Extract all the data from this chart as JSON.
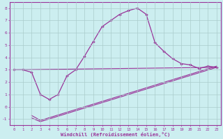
{
  "xlabel": "Windchill (Refroidissement éolien,°C)",
  "xlim": [
    -0.5,
    23.5
  ],
  "ylim": [
    -1.5,
    8.5
  ],
  "yticks": [
    -1,
    0,
    1,
    2,
    3,
    4,
    5,
    6,
    7,
    8
  ],
  "xticks": [
    0,
    1,
    2,
    3,
    4,
    5,
    6,
    7,
    8,
    9,
    10,
    11,
    12,
    13,
    14,
    15,
    16,
    17,
    18,
    19,
    20,
    21,
    22,
    23
  ],
  "bg_color": "#cceef0",
  "grid_color": "#aacccc",
  "line_color": "#993399",
  "line1_x": [
    0,
    1,
    2,
    3,
    4,
    5,
    6,
    7,
    8,
    9,
    10,
    11,
    12,
    13,
    14,
    15,
    16,
    17,
    18,
    19,
    20,
    21,
    22,
    23
  ],
  "line1_y": [
    3.0,
    3.0,
    2.8,
    1.0,
    0.6,
    1.0,
    2.5,
    3.0,
    4.1,
    5.3,
    6.5,
    7.0,
    7.5,
    7.8,
    8.0,
    7.5,
    5.2,
    4.5,
    3.9,
    3.5,
    3.4,
    3.1,
    3.3,
    3.2
  ],
  "line2_x": [
    2,
    3,
    23
  ],
  "line2_y": [
    -0.9,
    -1.2,
    3.2
  ],
  "line3_x": [
    2,
    3,
    23
  ],
  "line3_y": [
    -0.7,
    -1.1,
    3.3
  ],
  "line4_x": [
    0,
    23
  ],
  "line4_y": [
    3.0,
    3.2
  ]
}
